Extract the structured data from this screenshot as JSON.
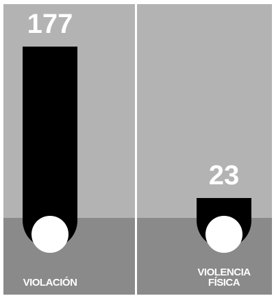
{
  "chart_data": {
    "type": "bar",
    "categories": [
      "VIOLACIÓN",
      "VIOLENCIA FÍSICA"
    ],
    "values": [
      177,
      23
    ],
    "color": "#000000"
  }
}
